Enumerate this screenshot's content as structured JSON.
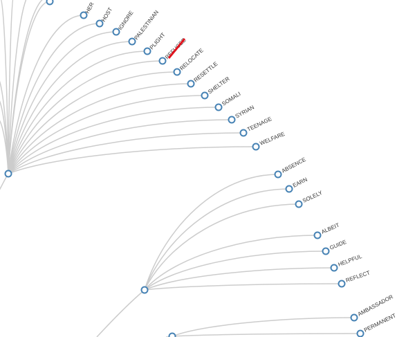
{
  "highlight_color": "#e0141e",
  "node_stroke_color": "#4682b4",
  "link_color": "#cccccc",
  "tree": {
    "groups": [
      {
        "name": "group-1",
        "leaves": [
          "HER",
          "HOST",
          "IGNORE",
          "PALESTINIAN",
          "PLIGHT",
          "REFUGEE",
          "RELOCATE",
          "RESETTLE",
          "SHELTER",
          "SOMALI",
          "SYRIAN",
          "TEENAGE",
          "WELFARE"
        ],
        "highlighted_leaf": "REFUGEE"
      },
      {
        "name": "group-2",
        "leaves": [
          "ABSENCE",
          "EARN",
          "SOLELY",
          "ALBEIT",
          "GUIDE",
          "HELPFUL",
          "REFLECT"
        ]
      },
      {
        "name": "group-3",
        "leaves": [
          "AMBASSADOR",
          "PERMANENT"
        ]
      }
    ]
  }
}
